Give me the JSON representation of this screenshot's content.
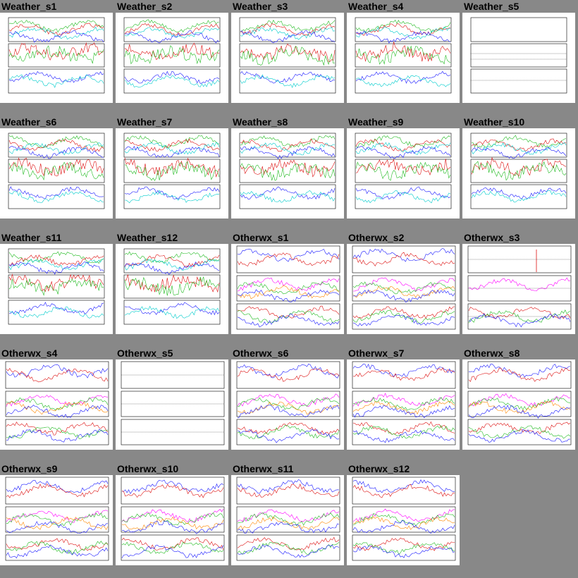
{
  "gallery": {
    "columns": 5,
    "colors": {
      "background": "#888888",
      "thumb_bg": "#ffffff",
      "series_blue": "#1a1aff",
      "series_green": "#22bb22",
      "series_red": "#dd1111",
      "series_cyan": "#00cccc",
      "series_magenta": "#ff00ff",
      "series_orange": "#ff8800"
    },
    "items": [
      {
        "label": "Weather_s1",
        "style": "weather"
      },
      {
        "label": "Weather_s2",
        "style": "weather"
      },
      {
        "label": "Weather_s3",
        "style": "weather"
      },
      {
        "label": "Weather_s4",
        "style": "weather"
      },
      {
        "label": "Weather_s5",
        "style": "weather-empty"
      },
      {
        "label": "Weather_s6",
        "style": "weather"
      },
      {
        "label": "Weather_s7",
        "style": "weather"
      },
      {
        "label": "Weather_s8",
        "style": "weather"
      },
      {
        "label": "Weather_s9",
        "style": "weather"
      },
      {
        "label": "Weather_s10",
        "style": "weather"
      },
      {
        "label": "Weather_s11",
        "style": "weather"
      },
      {
        "label": "Weather_s12",
        "style": "weather"
      },
      {
        "label": "Otherwx_s1",
        "style": "otherwx"
      },
      {
        "label": "Otherwx_s2",
        "style": "otherwx"
      },
      {
        "label": "Otherwx_s3",
        "style": "otherwx-sparse"
      },
      {
        "label": "Otherwx_s4",
        "style": "otherwx"
      },
      {
        "label": "Otherwx_s5",
        "style": "otherwx-empty"
      },
      {
        "label": "Otherwx_s6",
        "style": "otherwx"
      },
      {
        "label": "Otherwx_s7",
        "style": "otherwx"
      },
      {
        "label": "Otherwx_s8",
        "style": "otherwx"
      },
      {
        "label": "Otherwx_s9",
        "style": "otherwx"
      },
      {
        "label": "Otherwx_s10",
        "style": "otherwx"
      },
      {
        "label": "Otherwx_s11",
        "style": "otherwx"
      },
      {
        "label": "Otherwx_s12",
        "style": "otherwx"
      }
    ]
  }
}
